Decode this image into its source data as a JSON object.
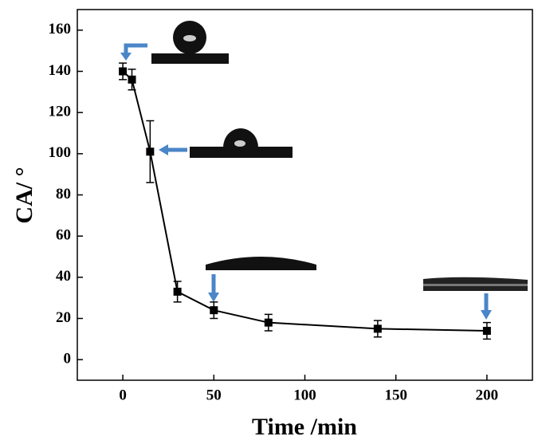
{
  "chart_data": {
    "type": "line",
    "x_label": "Time /min",
    "y_label": "CA/ °",
    "series": [
      {
        "color": "#000000",
        "x": [
          0,
          5,
          15,
          30,
          50,
          80,
          140,
          200
        ],
        "values": [
          140,
          136,
          101,
          33,
          24,
          18,
          15,
          14
        ],
        "errors": [
          4,
          5,
          15,
          5,
          4,
          4,
          4,
          4
        ]
      }
    ],
    "xlim": [
      -25,
      225
    ],
    "xticks": [
      0,
      50,
      100,
      150,
      200
    ],
    "ylim": [
      -10,
      170
    ],
    "yticks": [
      0,
      20,
      40,
      60,
      80,
      100,
      120,
      140,
      160
    ],
    "grid": false
  }
}
